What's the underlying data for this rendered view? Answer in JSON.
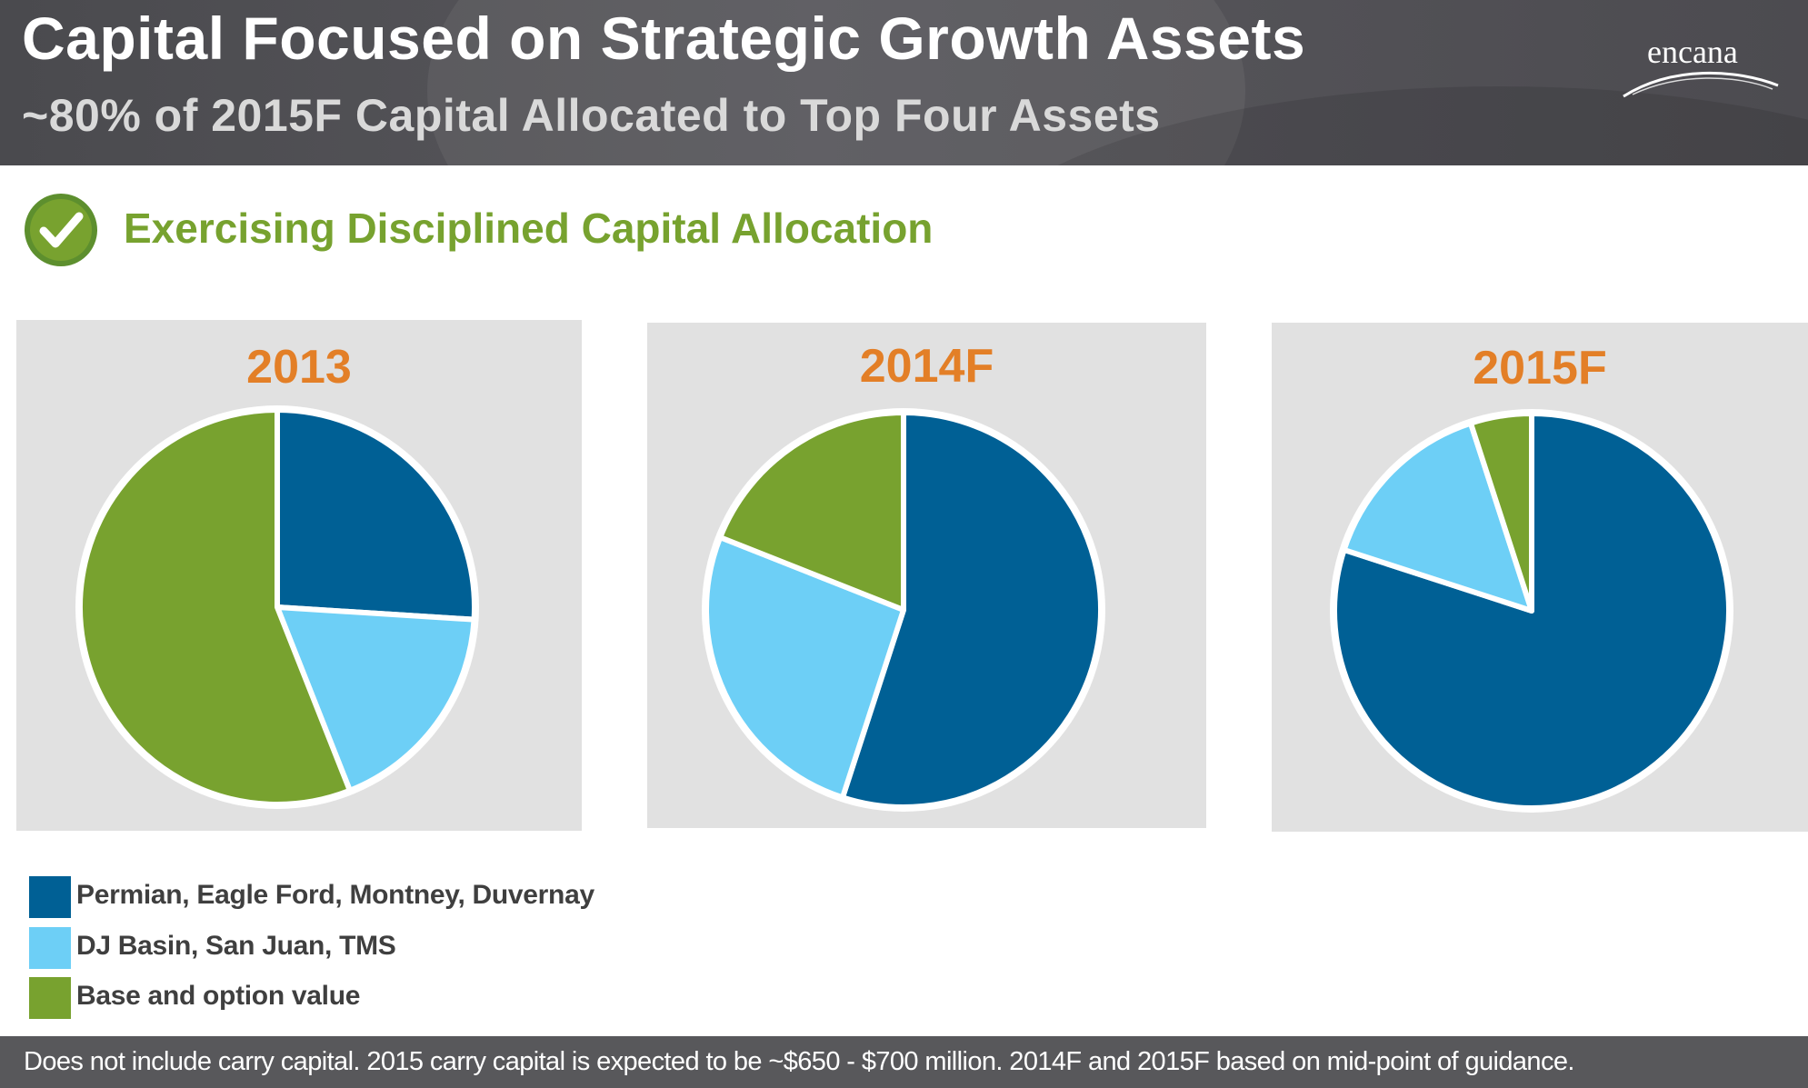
{
  "header": {
    "title": "Capital Focused on Strategic Growth Assets",
    "subtitle": "~80% of 2015F Capital Allocated to Top Four Assets",
    "logo_text": "encana"
  },
  "section": {
    "title": "Exercising Disciplined Capital Allocation",
    "icon": "check-icon"
  },
  "colors": {
    "top_four": "#006095",
    "dj_basin": "#6dcff6",
    "base": "#78a22f",
    "year_label": "#e37f27",
    "section_title": "#77a22f"
  },
  "chart_data": [
    {
      "type": "pie",
      "title": "2013",
      "labels": [
        "Permian, Eagle Ford, Montney, Duvernay",
        "DJ Basin, San Juan, TMS",
        "Base and option value"
      ],
      "values": [
        26,
        18,
        56
      ]
    },
    {
      "type": "pie",
      "title": "2014F",
      "labels": [
        "Permian, Eagle Ford, Montney, Duvernay",
        "DJ Basin, San Juan, TMS",
        "Base and option value"
      ],
      "values": [
        55,
        26,
        19
      ]
    },
    {
      "type": "pie",
      "title": "2015F",
      "labels": [
        "Permian, Eagle Ford, Montney, Duvernay",
        "DJ Basin, San Juan, TMS",
        "Base and option value"
      ],
      "values": [
        80,
        15,
        5
      ]
    }
  ],
  "legend": [
    {
      "label": "Permian, Eagle Ford, Montney, Duvernay",
      "color": "#006095"
    },
    {
      "label": "DJ Basin, San Juan, TMS",
      "color": "#6dcff6"
    },
    {
      "label": "Base and option value",
      "color": "#78a22f"
    }
  ],
  "footer": {
    "note": "Does not include carry capital. 2015 carry capital is expected to be ~$650 - $700 million. 2014F and 2015F based on mid-point of guidance."
  }
}
